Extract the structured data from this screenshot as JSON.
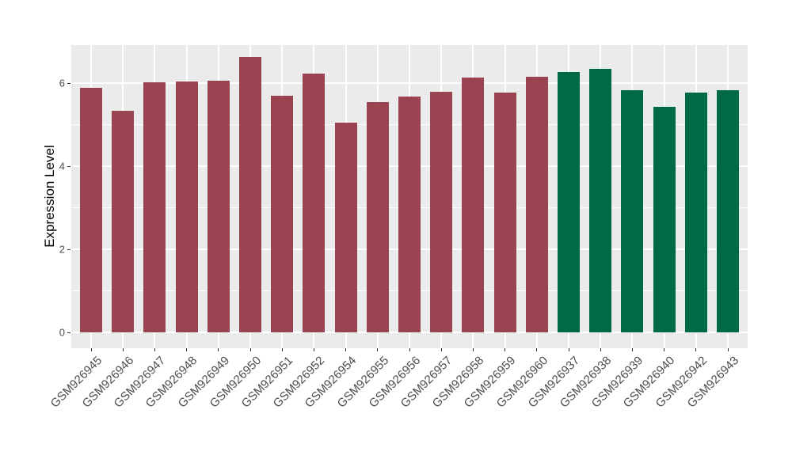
{
  "figure": {
    "background_color": "#FFFFFF",
    "panel_background_color": "#EBEBEB",
    "grid_color": "#FFFFFF",
    "axis_tick_color": "#333333",
    "axis_text_color": "#4D4D4D",
    "axis_title_color": "#000000",
    "bar_color_left_group": "#9A4452",
    "bar_color_right_group": "#006948"
  },
  "chart_data": {
    "type": "bar",
    "title": "",
    "xlabel": "",
    "ylabel": "Expression Level",
    "ylim": [
      0,
      6.93
    ],
    "yticks": [
      0,
      2,
      4,
      6
    ],
    "yminorticks": [
      1,
      3,
      5
    ],
    "grid": "on",
    "legend_position": "none",
    "x_tick_rotation_deg": 45,
    "categories": [
      "GSM926945",
      "GSM926946",
      "GSM926947",
      "GSM926948",
      "GSM926949",
      "GSM926950",
      "GSM926951",
      "GSM926952",
      "GSM926954",
      "GSM926955",
      "GSM926956",
      "GSM926957",
      "GSM926958",
      "GSM926959",
      "GSM926960",
      "GSM926937",
      "GSM926938",
      "GSM926939",
      "GSM926940",
      "GSM926942",
      "GSM926943"
    ],
    "values": [
      5.88,
      5.34,
      6.01,
      6.03,
      6.05,
      6.62,
      5.7,
      6.23,
      5.05,
      5.55,
      5.68,
      5.8,
      6.14,
      5.77,
      6.16,
      6.27,
      6.35,
      5.83,
      5.42,
      5.78,
      5.82
    ],
    "bar_colors": [
      "#9A4452",
      "#9A4452",
      "#9A4452",
      "#9A4452",
      "#9A4452",
      "#9A4452",
      "#9A4452",
      "#9A4452",
      "#9A4452",
      "#9A4452",
      "#9A4452",
      "#9A4452",
      "#9A4452",
      "#9A4452",
      "#9A4452",
      "#006948",
      "#006948",
      "#006948",
      "#006948",
      "#006948",
      "#006948"
    ]
  }
}
